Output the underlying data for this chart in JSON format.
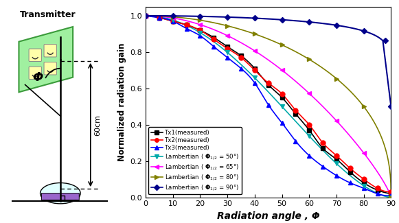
{
  "title": "",
  "xlabel": "Radiation angle , Φ",
  "ylabel": "Normalized radiation gain",
  "xlim": [
    0,
    90
  ],
  "ylim": [
    0.0,
    1.05
  ],
  "xticks": [
    0,
    10,
    20,
    30,
    40,
    50,
    60,
    70,
    80,
    90
  ],
  "yticks": [
    0.0,
    0.2,
    0.4,
    0.6,
    0.8,
    1.0
  ],
  "series": [
    {
      "label": "Tx1(measured)",
      "color": "#000000",
      "marker": "s",
      "phi_half": null,
      "angles": [
        0,
        5,
        10,
        15,
        20,
        25,
        30,
        35,
        40,
        45,
        50,
        55,
        60,
        65,
        70,
        75,
        80,
        85,
        90
      ],
      "values": [
        1.0,
        0.99,
        0.97,
        0.95,
        0.92,
        0.88,
        0.83,
        0.78,
        0.71,
        0.62,
        0.55,
        0.46,
        0.37,
        0.27,
        0.21,
        0.14,
        0.08,
        0.04,
        0.02
      ]
    },
    {
      "label": "Tx2(measured)",
      "color": "#ff0000",
      "marker": "o",
      "phi_half": null,
      "angles": [
        0,
        5,
        10,
        15,
        20,
        25,
        30,
        35,
        40,
        45,
        50,
        55,
        60,
        65,
        70,
        75,
        80,
        85,
        90
      ],
      "values": [
        1.0,
        0.99,
        0.97,
        0.95,
        0.92,
        0.87,
        0.82,
        0.77,
        0.7,
        0.63,
        0.57,
        0.48,
        0.4,
        0.3,
        0.23,
        0.16,
        0.1,
        0.05,
        0.03
      ]
    },
    {
      "label": "Tx3(measured)",
      "color": "#0000ff",
      "marker": "^",
      "phi_half": null,
      "angles": [
        0,
        5,
        10,
        15,
        20,
        25,
        30,
        35,
        40,
        45,
        50,
        55,
        60,
        65,
        70,
        75,
        80,
        85,
        90
      ],
      "values": [
        1.0,
        0.99,
        0.97,
        0.93,
        0.89,
        0.83,
        0.77,
        0.71,
        0.63,
        0.51,
        0.41,
        0.31,
        0.23,
        0.17,
        0.12,
        0.08,
        0.05,
        0.02,
        0.01
      ]
    },
    {
      "label": "Lambertian ( Φ₁₂ = 50°)",
      "color": "#00aaaa",
      "marker": "v",
      "phi_half": 50
    },
    {
      "label": "Lambertian ( Φ₁₂ = 65°)",
      "color": "#ff00ff",
      "marker": "<",
      "phi_half": 65
    },
    {
      "label": "Lambertian ( Φ₁₂ = 80°)",
      "color": "#808000",
      "marker": ">",
      "phi_half": 80
    },
    {
      "label": "Lambertian ( Φ₁₂ = 90°)",
      "color": "#00008b",
      "marker": "D",
      "phi_half": 90
    }
  ],
  "diagram": {
    "transmitter_label": "Transmitter",
    "phi_label": "Φ",
    "distance_label": "60cm",
    "panel_color": "#90ee90",
    "panel_edge_color": "#228B22",
    "receiver_color": "#e0ffff",
    "receiver_strip_color": "#9966cc"
  }
}
